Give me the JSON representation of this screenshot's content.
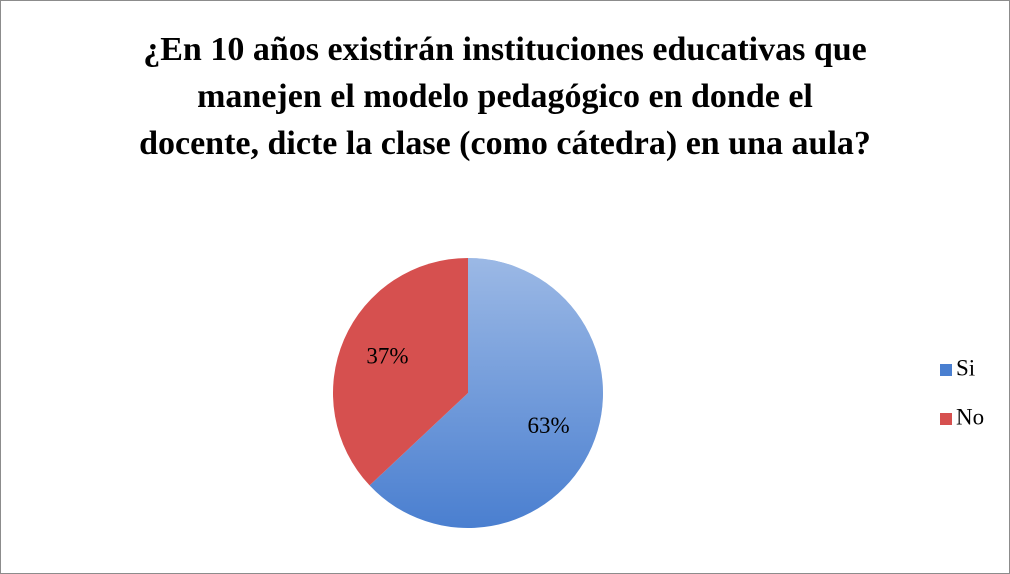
{
  "chart_data": {
    "type": "pie",
    "title": "¿En 10 años existirán instituciones educativas que manejen el modelo pedagógico en donde el docente, dicte la clase (como cátedra) en una aula?",
    "categories": [
      "Si",
      "No"
    ],
    "values": [
      63,
      37
    ],
    "value_labels": [
      "63%",
      "37%"
    ],
    "colors": [
      "#4a7fd0",
      "#d6504f"
    ],
    "legend": "right"
  }
}
